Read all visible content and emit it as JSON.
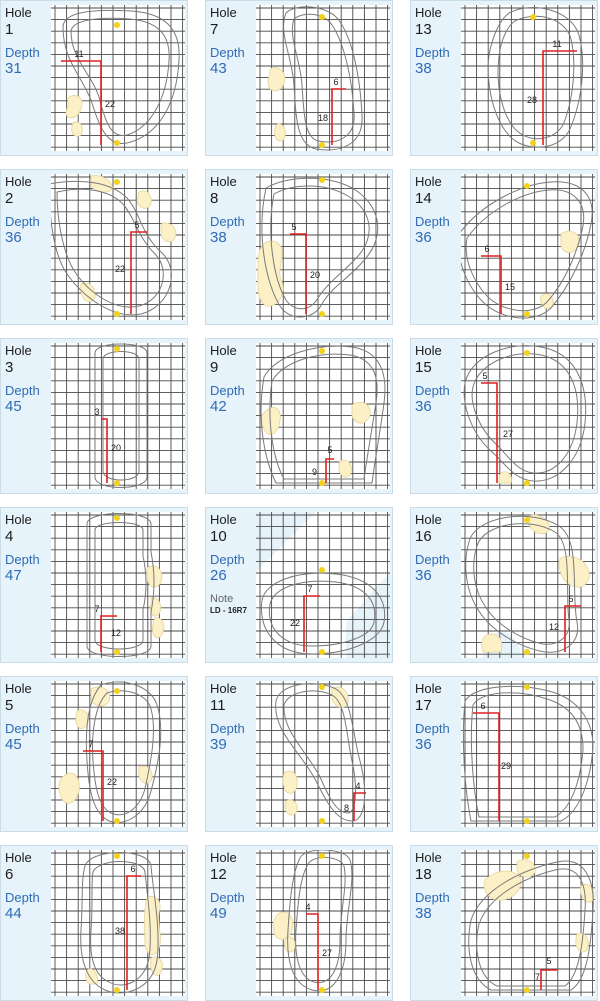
{
  "labels": {
    "hole": "Hole",
    "depth": "Depth",
    "note": "Note"
  },
  "holes": [
    {
      "hole": "1",
      "depth": "31",
      "across": "11",
      "up": "22"
    },
    {
      "hole": "7",
      "depth": "43",
      "across": "6",
      "up": "18"
    },
    {
      "hole": "13",
      "depth": "38",
      "across": "11",
      "up": "28"
    },
    {
      "hole": "2",
      "depth": "36",
      "across": "5",
      "up": "22"
    },
    {
      "hole": "8",
      "depth": "38",
      "across": "5",
      "up": "20"
    },
    {
      "hole": "14",
      "depth": "36",
      "across": "6",
      "up": "15"
    },
    {
      "hole": "3",
      "depth": "45",
      "across": "3",
      "up": "20"
    },
    {
      "hole": "9",
      "depth": "42",
      "across": "5",
      "up": "9"
    },
    {
      "hole": "15",
      "depth": "36",
      "across": "5",
      "up": "27"
    },
    {
      "hole": "4",
      "depth": "47",
      "across": "7",
      "up": "12"
    },
    {
      "hole": "10",
      "depth": "26",
      "across": "7",
      "up": "22",
      "note": "LD - 16R7"
    },
    {
      "hole": "16",
      "depth": "36",
      "across": "5",
      "up": "12"
    },
    {
      "hole": "5",
      "depth": "45",
      "across": "7",
      "up": "22"
    },
    {
      "hole": "11",
      "depth": "39",
      "across": "4",
      "up": "8"
    },
    {
      "hole": "17",
      "depth": "36",
      "across": "6",
      "up": "29"
    },
    {
      "hole": "6",
      "depth": "44",
      "across": "6",
      "up": "38"
    },
    {
      "hole": "12",
      "depth": "49",
      "across": "4",
      "up": "27"
    },
    {
      "hole": "18",
      "depth": "38",
      "across": "5",
      "up": "7"
    }
  ],
  "colors": {
    "card_bg": "#e6f3fb",
    "depth_text": "#2f6bb5",
    "measure_line": "#e02020",
    "pin_marker": "#f2d21a",
    "bunker_fill": "#fbf0c6"
  }
}
